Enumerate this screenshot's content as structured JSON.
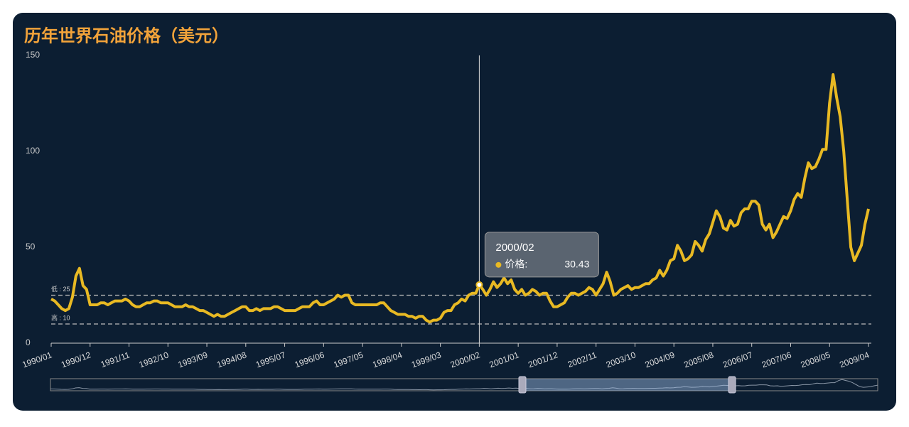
{
  "chart_data": {
    "type": "line",
    "title": "历年世界石油价格（美元）",
    "color": "#e8b923",
    "categories": [
      "1990/01",
      null,
      null,
      null,
      null,
      null,
      null,
      null,
      null,
      null,
      null,
      "1990/12",
      null,
      null,
      null,
      null,
      null,
      null,
      null,
      null,
      null,
      null,
      "1991/11",
      null,
      null,
      null,
      null,
      null,
      null,
      null,
      null,
      null,
      null,
      "1992/10",
      null,
      null,
      null,
      null,
      null,
      null,
      null,
      null,
      null,
      null,
      "1993/09",
      null,
      null,
      null,
      null,
      null,
      null,
      null,
      null,
      null,
      null,
      "1994/08",
      null,
      null,
      null,
      null,
      null,
      null,
      null,
      null,
      null,
      null,
      "1995/07",
      null,
      null,
      null,
      null,
      null,
      null,
      null,
      null,
      null,
      null,
      "1996/06",
      null,
      null,
      null,
      null,
      null,
      null,
      null,
      null,
      null,
      null,
      "1997/05",
      null,
      null,
      null,
      null,
      null,
      null,
      null,
      null,
      null,
      null,
      "1998/04",
      null,
      null,
      null,
      null,
      null,
      null,
      null,
      null,
      null,
      null,
      "1999/03",
      null,
      null,
      null,
      null,
      null,
      null,
      null,
      null,
      null,
      null,
      "2000/02",
      null,
      null,
      null,
      null,
      null,
      null,
      null,
      null,
      null,
      null,
      "2001/01",
      null,
      null,
      null,
      null,
      null,
      null,
      null,
      null,
      null,
      null,
      "2001/12",
      null,
      null,
      null,
      null,
      null,
      null,
      null,
      null,
      null,
      null,
      "2002/11",
      null,
      null,
      null,
      null,
      null,
      null,
      null,
      null,
      null,
      null,
      "2003/10",
      null,
      null,
      null,
      null,
      null,
      null,
      null,
      null,
      null,
      null,
      "2004/09",
      null,
      null,
      null,
      null,
      null,
      null,
      null,
      null,
      null,
      null,
      "2005/08",
      null,
      null,
      null,
      null,
      null,
      null,
      null,
      null,
      null,
      null,
      "2006/07",
      null,
      null,
      null,
      null,
      null,
      null,
      null,
      null,
      null,
      null,
      "2007/06",
      null,
      null,
      null,
      null,
      null,
      null,
      null,
      null,
      null,
      null,
      "2008/05",
      null,
      null,
      null,
      null,
      null,
      null,
      null,
      null,
      null,
      null,
      "2009/04"
    ],
    "values": [
      23,
      22,
      20,
      18,
      17,
      18,
      24,
      35,
      39,
      30,
      28,
      20,
      20,
      20,
      21,
      21,
      20,
      21,
      22,
      22,
      22,
      23,
      22,
      20,
      19,
      19,
      20,
      21,
      21,
      22,
      22,
      21,
      21,
      21,
      20,
      19,
      19,
      19,
      20,
      19,
      19,
      18,
      17,
      17,
      16,
      15,
      14,
      15,
      14,
      14,
      15,
      16,
      17,
      18,
      19,
      19,
      17,
      17,
      18,
      17,
      18,
      18,
      18,
      19,
      19,
      18,
      17,
      17,
      17,
      17,
      18,
      19,
      19,
      19,
      21,
      22,
      20,
      20,
      21,
      22,
      23,
      25,
      24,
      25,
      25,
      21,
      20,
      20,
      20,
      20,
      20,
      20,
      20,
      21,
      21,
      19,
      17,
      16,
      15,
      15,
      15,
      14,
      14,
      13,
      14,
      14,
      12,
      11,
      12,
      12,
      13,
      16,
      17,
      17,
      20,
      21,
      23,
      22,
      25,
      26,
      26,
      30.43,
      28,
      25,
      28,
      32,
      29,
      31,
      34,
      31,
      33,
      28,
      26,
      28,
      25,
      26,
      28,
      27,
      25,
      26,
      26,
      22,
      19,
      19,
      20,
      21,
      24,
      26,
      26,
      25,
      26,
      27,
      29,
      28,
      25,
      28,
      31,
      37,
      32,
      25,
      26,
      28,
      29,
      30,
      28,
      29,
      29,
      30,
      31,
      31,
      33,
      34,
      38,
      35,
      38,
      43,
      44,
      51,
      48,
      43,
      44,
      46,
      53,
      51,
      48,
      54,
      57,
      63,
      69,
      66,
      60,
      59,
      64,
      61,
      62,
      68,
      70,
      70,
      74,
      74,
      72,
      62,
      59,
      62,
      55,
      58,
      62,
      66,
      65,
      69,
      75,
      78,
      76,
      86,
      94,
      91,
      92,
      96,
      101,
      101,
      125,
      140,
      128,
      118,
      100,
      75,
      50,
      43,
      47,
      51,
      62,
      70
    ],
    "ylim": [
      0,
      150
    ],
    "yticks": [
      0,
      50,
      100,
      150
    ],
    "mark_lines": [
      {
        "label": "低 : 25",
        "value": 25
      },
      {
        "label": "高 : 10",
        "value": 10
      }
    ],
    "tooltip": {
      "index": 121,
      "label": "价格:"
    }
  }
}
